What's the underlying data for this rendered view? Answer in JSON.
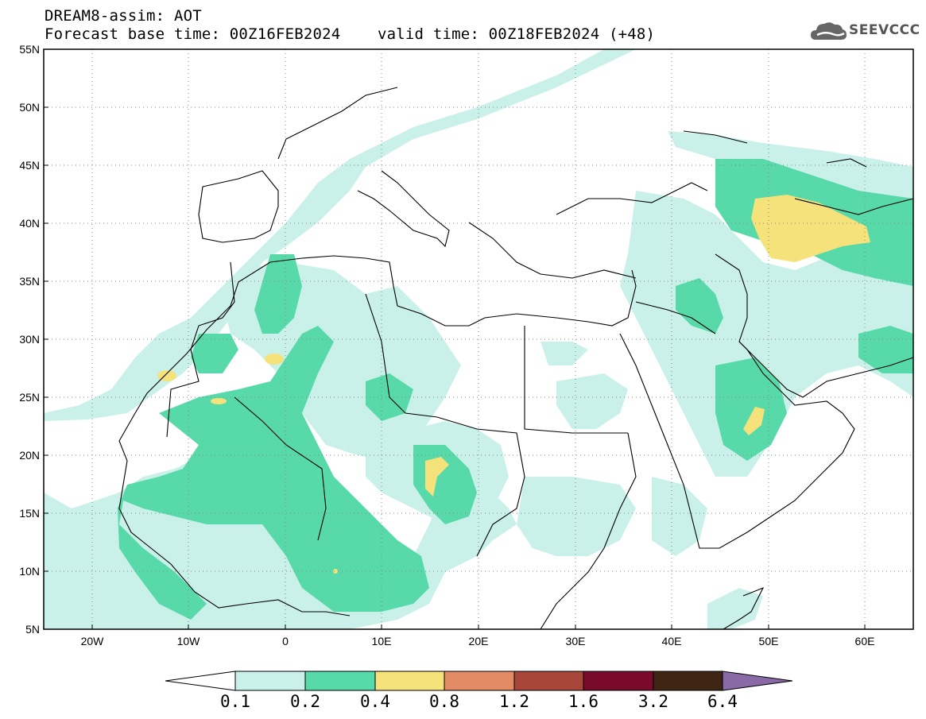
{
  "header": {
    "line1": "DREAM8-assim: AOT",
    "line2": "Forecast base time: 00Z16FEB2024    valid time: 00Z18FEB2024 (+48)"
  },
  "logo": {
    "text": "SEEVCCC",
    "icon": "cloud-icon"
  },
  "map": {
    "lat_range": [
      5,
      55
    ],
    "lon_range": [
      -25,
      65
    ],
    "grid": "dotted",
    "lat_labels": [
      "55N",
      "50N",
      "45N",
      "40N",
      "35N",
      "30N",
      "25N",
      "20N",
      "15N",
      "10N",
      "5N"
    ],
    "lon_labels": [
      "20W",
      "10W",
      "0",
      "10E",
      "20E",
      "30E",
      "40E",
      "50E",
      "60E"
    ]
  },
  "legend": {
    "levels": [
      "0.1",
      "0.2",
      "0.4",
      "0.8",
      "1.2",
      "1.6",
      "3.2",
      "6.4"
    ],
    "colors": [
      "#c9f1ea",
      "#58d9a9",
      "#f6e27a",
      "#e38b65",
      "#a9463a",
      "#7a0a2b",
      "#3e2514",
      "#8a6aa6"
    ]
  },
  "colors": {
    "aot_0_1": "#c9f1ea",
    "aot_0_2": "#58d9a9",
    "aot_0_4": "#f6e27a"
  }
}
